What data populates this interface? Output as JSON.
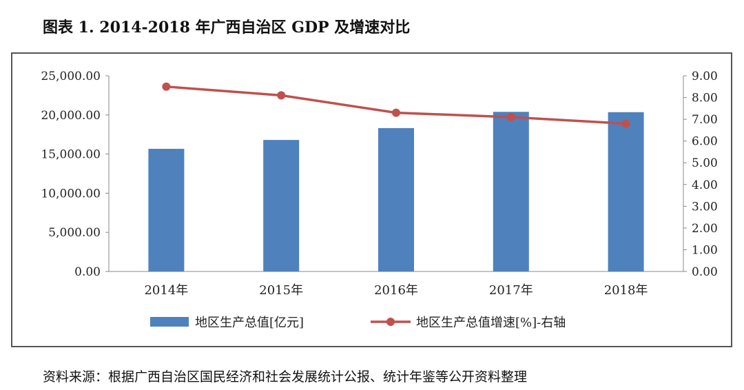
{
  "title": "图表 1.   2014-2018 年广西自治区 GDP 及增速对比",
  "source": "资料来源：根据广西自治区国民经济和社会发展统计公报、统计年鉴等公开资料整理",
  "chart_data": {
    "type": "bar",
    "categories": [
      "2014年",
      "2015年",
      "2016年",
      "2017年",
      "2018年"
    ],
    "series": [
      {
        "name": "地区生产总值[亿元]",
        "type": "bar",
        "axis": "left",
        "color": "#4f81bd",
        "values": [
          15672.89,
          16803.12,
          18317.64,
          20396.25,
          20352.51
        ]
      },
      {
        "name": "地区生产总值增速[%]-右轴",
        "type": "line",
        "axis": "right",
        "color": "#c0504d",
        "values": [
          8.5,
          8.1,
          7.3,
          7.1,
          6.8
        ]
      }
    ],
    "left_axis": {
      "min": 0,
      "max": 25000,
      "step": 5000,
      "tick_labels": [
        "0.00",
        "5,000.00",
        "10,000.00",
        "15,000.00",
        "20,000.00",
        "25,000.00"
      ]
    },
    "right_axis": {
      "min": 0,
      "max": 9,
      "step": 1,
      "tick_labels": [
        "0.00",
        "1.00",
        "2.00",
        "3.00",
        "4.00",
        "5.00",
        "6.00",
        "7.00",
        "8.00",
        "9.00"
      ]
    },
    "grid": false,
    "legend_position": "bottom"
  }
}
